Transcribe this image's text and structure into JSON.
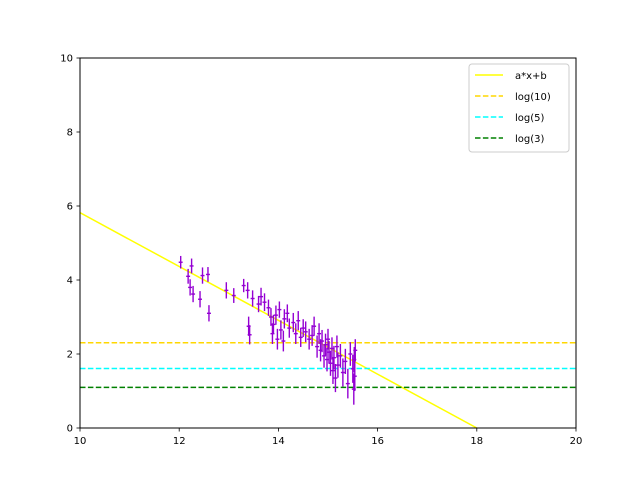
{
  "chart_data": {
    "type": "scatter",
    "title": "",
    "xlabel": "",
    "ylabel": "",
    "xlim": [
      10,
      20
    ],
    "ylim": [
      0,
      10
    ],
    "xticks": [
      "10",
      "12",
      "14",
      "16",
      "18",
      "20"
    ],
    "yticks": [
      "0",
      "2",
      "4",
      "6",
      "8",
      "10"
    ],
    "grid": false,
    "legend_position": "top-right",
    "series": [
      {
        "name": "a*x+b",
        "kind": "line",
        "color": "#ffff00",
        "dashed": false,
        "points": [
          [
            10,
            5.82
          ],
          [
            18,
            0.0
          ]
        ]
      },
      {
        "name": "log(10)",
        "kind": "hline",
        "color": "#ffd700",
        "dashed": true,
        "y": 2.3026
      },
      {
        "name": "log(5)",
        "kind": "hline",
        "color": "#00ffff",
        "dashed": true,
        "y": 1.6094
      },
      {
        "name": "log(3)",
        "kind": "hline",
        "color": "#008000",
        "dashed": true,
        "y": 1.0986
      }
    ],
    "errorbar_series": {
      "color": "#9400d3",
      "xerr": 0.04,
      "points": [
        [
          12.03,
          4.48,
          0.17
        ],
        [
          12.18,
          4.1,
          0.2
        ],
        [
          12.22,
          3.8,
          0.22
        ],
        [
          12.25,
          4.38,
          0.2
        ],
        [
          12.28,
          3.62,
          0.22
        ],
        [
          12.42,
          3.48,
          0.22
        ],
        [
          12.47,
          4.12,
          0.22
        ],
        [
          12.58,
          4.15,
          0.2
        ],
        [
          12.6,
          3.1,
          0.22
        ],
        [
          12.95,
          3.72,
          0.22
        ],
        [
          13.1,
          3.58,
          0.2
        ],
        [
          13.3,
          3.85,
          0.18
        ],
        [
          13.38,
          3.72,
          0.22
        ],
        [
          13.4,
          2.75,
          0.26
        ],
        [
          13.42,
          2.52,
          0.26
        ],
        [
          13.48,
          3.5,
          0.22
        ],
        [
          13.6,
          3.35,
          0.22
        ],
        [
          13.65,
          3.55,
          0.24
        ],
        [
          13.72,
          3.4,
          0.24
        ],
        [
          13.8,
          3.25,
          0.22
        ],
        [
          13.85,
          3.0,
          0.24
        ],
        [
          13.88,
          2.55,
          0.28
        ],
        [
          13.9,
          2.8,
          0.26
        ],
        [
          13.95,
          3.05,
          0.26
        ],
        [
          13.98,
          2.4,
          0.28
        ],
        [
          14.02,
          3.2,
          0.22
        ],
        [
          14.05,
          2.65,
          0.26
        ],
        [
          14.1,
          2.35,
          0.28
        ],
        [
          14.12,
          2.95,
          0.26
        ],
        [
          14.18,
          3.1,
          0.24
        ],
        [
          14.22,
          2.7,
          0.26
        ],
        [
          14.3,
          2.85,
          0.26
        ],
        [
          14.35,
          2.55,
          0.28
        ],
        [
          14.4,
          2.9,
          0.26
        ],
        [
          14.45,
          2.45,
          0.26
        ],
        [
          14.5,
          2.7,
          0.24
        ],
        [
          14.55,
          2.6,
          0.28
        ],
        [
          14.62,
          2.4,
          0.28
        ],
        [
          14.68,
          2.5,
          0.28
        ],
        [
          14.72,
          2.75,
          0.26
        ],
        [
          14.78,
          2.2,
          0.3
        ],
        [
          14.82,
          2.55,
          0.28
        ],
        [
          14.85,
          2.1,
          0.3
        ],
        [
          14.88,
          2.35,
          0.3
        ],
        [
          14.92,
          1.95,
          0.32
        ],
        [
          14.95,
          2.25,
          0.3
        ],
        [
          14.98,
          1.85,
          0.32
        ],
        [
          15.0,
          2.4,
          0.28
        ],
        [
          15.02,
          2.05,
          0.3
        ],
        [
          15.05,
          1.75,
          0.34
        ],
        [
          15.08,
          2.15,
          0.3
        ],
        [
          15.1,
          1.55,
          0.36
        ],
        [
          15.12,
          1.9,
          0.32
        ],
        [
          15.15,
          1.35,
          0.38
        ],
        [
          15.18,
          2.2,
          0.3
        ],
        [
          15.2,
          1.7,
          0.34
        ],
        [
          15.25,
          1.95,
          0.32
        ],
        [
          15.3,
          1.5,
          0.38
        ],
        [
          15.35,
          1.8,
          0.34
        ],
        [
          15.4,
          1.2,
          0.4
        ],
        [
          15.45,
          2.0,
          0.32
        ],
        [
          15.5,
          1.6,
          0.38
        ],
        [
          15.52,
          1.05,
          0.42
        ],
        [
          15.53,
          1.85,
          0.34
        ],
        [
          15.54,
          1.4,
          0.4
        ],
        [
          15.55,
          2.1,
          0.3
        ]
      ]
    }
  },
  "colors": {
    "axes": "#000000",
    "background": "#ffffff",
    "legend_border": "#cccccc"
  }
}
